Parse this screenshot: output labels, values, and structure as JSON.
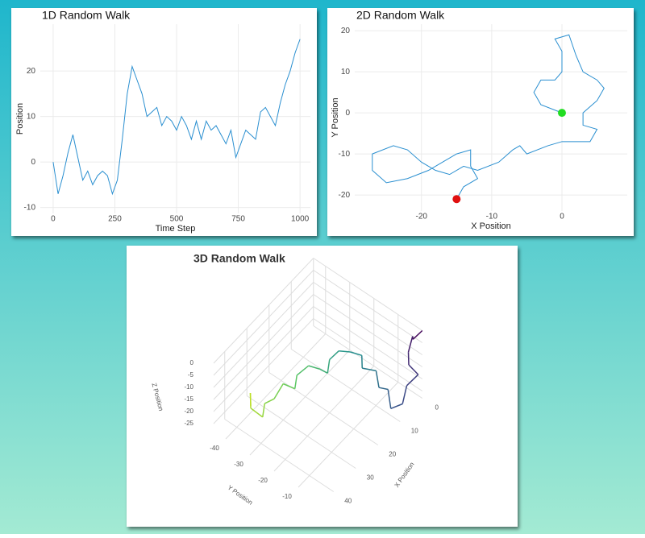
{
  "chart_data": [
    {
      "type": "line",
      "title": "1D Random Walk",
      "xlabel": "Time Step",
      "ylabel": "Position",
      "color": "#2a8fd0",
      "x": [
        0,
        20,
        40,
        60,
        80,
        100,
        120,
        140,
        160,
        180,
        200,
        220,
        240,
        260,
        280,
        300,
        320,
        340,
        360,
        380,
        400,
        420,
        440,
        460,
        480,
        500,
        520,
        540,
        560,
        580,
        600,
        620,
        640,
        660,
        680,
        700,
        720,
        740,
        760,
        780,
        800,
        820,
        840,
        860,
        880,
        900,
        920,
        940,
        960,
        980,
        1000
      ],
      "values": [
        0,
        -7,
        -3,
        2,
        6,
        1,
        -4,
        -2,
        -5,
        -3,
        -2,
        -3,
        -7,
        -4,
        5,
        15,
        21,
        18,
        15,
        10,
        11,
        12,
        8,
        10,
        9,
        7,
        10,
        8,
        5,
        9,
        5,
        9,
        7,
        8,
        6,
        4,
        7,
        1,
        4,
        7,
        6,
        5,
        11,
        12,
        10,
        8,
        13,
        17,
        20,
        24,
        27
      ],
      "xlim": [
        -52,
        1042
      ],
      "ylim": [
        -11.3,
        30.3
      ],
      "xticks": [
        0,
        250,
        500,
        750,
        1000
      ],
      "yticks": [
        -10,
        0,
        10,
        20
      ],
      "grid": true
    },
    {
      "type": "line",
      "title": "2D Random Walk",
      "xlabel": "X Position",
      "ylabel": "Y Position",
      "color": "#2a8fd0",
      "start_color": "#22dd22",
      "end_color": "#e01010",
      "x": [
        0,
        -3,
        -4,
        -3,
        -1,
        0,
        0,
        -1,
        1,
        2,
        3,
        5,
        6,
        5,
        3,
        3,
        5,
        4,
        0,
        -2,
        -5,
        -6,
        -7,
        -9,
        -12,
        -14,
        -16,
        -18,
        -20,
        -22,
        -24,
        -27,
        -27,
        -25,
        -22,
        -19,
        -17,
        -15,
        -13,
        -13,
        -12,
        -14,
        -15
      ],
      "values": [
        0,
        2,
        5,
        8,
        8,
        10,
        15,
        18,
        19,
        14,
        10,
        8,
        6,
        3,
        0,
        -3,
        -4,
        -7,
        -7,
        -8,
        -10,
        -8,
        -9,
        -12,
        -14,
        -13,
        -15,
        -14,
        -12,
        -9,
        -8,
        -10,
        -14,
        -17,
        -16,
        -14,
        -12,
        -10,
        -9,
        -13,
        -16,
        -18,
        -21
      ],
      "xlim": [
        -29.5,
        9.3
      ],
      "ylim": [
        -23.9,
        21.6
      ],
      "xticks": [
        -20,
        -10,
        0
      ],
      "yticks": [
        -20,
        -10,
        0,
        10,
        20
      ],
      "grid": true
    },
    {
      "type": "line3d",
      "title": "3D Random Walk",
      "xlabel": "X Position",
      "ylabel": "Y Position",
      "zlabel": "Z Position",
      "colorscale": [
        "#46085c",
        "#3b528b",
        "#21918c",
        "#5ec962",
        "#bddf26"
      ],
      "x": [
        0,
        2,
        0,
        3,
        5,
        4,
        7,
        10,
        12,
        10,
        13,
        11,
        14,
        12,
        15,
        18,
        20,
        22,
        21,
        24,
        26,
        28,
        30,
        33,
        34,
        36,
        37,
        35,
        37
      ],
      "y": [
        0,
        -2,
        -4,
        -3,
        -1,
        2,
        0,
        1,
        -2,
        -5,
        -6,
        -9,
        -12,
        -14,
        -16,
        -18,
        -20,
        -19,
        -23,
        -25,
        -28,
        -27,
        -30,
        -31,
        -34,
        -33,
        -37,
        -39,
        -37
      ],
      "z": [
        0,
        -3,
        -5,
        -8,
        -10,
        -13,
        -16,
        -20,
        -22,
        -18,
        -15,
        -12,
        -10,
        -8,
        -5,
        -3,
        -6,
        -9,
        -11,
        -8,
        -12,
        -15,
        -13,
        -17,
        -20,
        -23,
        -21,
        -18,
        -20
      ],
      "xlim": [
        0,
        45
      ],
      "ylim": [
        -45,
        0
      ],
      "zlim": [
        -28,
        0
      ],
      "xticks": [
        0,
        10,
        20,
        30,
        40
      ],
      "yticks": [
        -40,
        -30,
        -20,
        -10
      ],
      "zticks": [
        0,
        -5,
        -10,
        -15,
        -20,
        -25
      ]
    }
  ]
}
